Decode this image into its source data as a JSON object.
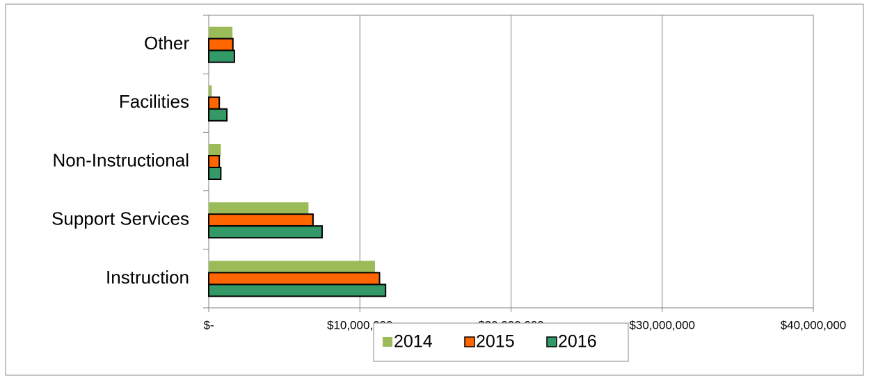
{
  "chart_data": {
    "type": "barh",
    "categories": [
      "Other",
      "Facilities",
      "Non-Instructional",
      "Support Services",
      "Instruction"
    ],
    "series": [
      {
        "name": "2014",
        "color": "#9bbb59",
        "values": [
          1570000,
          200000,
          800000,
          6600000,
          11000000
        ]
      },
      {
        "name": "2015",
        "color": "#ff6600",
        "values": [
          1600000,
          700000,
          700000,
          6900000,
          11300000
        ]
      },
      {
        "name": "2016",
        "color": "#339966",
        "values": [
          1700000,
          1200000,
          800000,
          7500000,
          11700000
        ]
      }
    ],
    "xlim": [
      0,
      40000000
    ],
    "xticks": [
      {
        "value": 0,
        "label": "$-"
      },
      {
        "value": 10000000,
        "label": "$10,000,000"
      },
      {
        "value": 20000000,
        "label": "$20,000,000"
      },
      {
        "value": 30000000,
        "label": "$30,000,000"
      },
      {
        "value": 40000000,
        "label": "$40,000,000"
      }
    ],
    "grid": true,
    "legend": "bottom"
  }
}
